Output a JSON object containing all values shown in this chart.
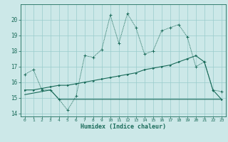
{
  "xlabel": "Humidex (Indice chaleur)",
  "xlim": [
    -0.5,
    23.5
  ],
  "ylim": [
    13.8,
    21.0
  ],
  "yticks": [
    14,
    15,
    16,
    17,
    18,
    19,
    20
  ],
  "xticks": [
    0,
    1,
    2,
    3,
    4,
    5,
    6,
    7,
    8,
    9,
    10,
    11,
    12,
    13,
    14,
    15,
    16,
    17,
    18,
    19,
    20,
    21,
    22,
    23
  ],
  "bg_color": "#cce8e8",
  "grid_color": "#99cccc",
  "line_color": "#1a6b5a",
  "line1_x": [
    0,
    1,
    2,
    3,
    4,
    5,
    6,
    7,
    8,
    9,
    10,
    11,
    12,
    13,
    14,
    15,
    16,
    17,
    18,
    19,
    20,
    21,
    22,
    23
  ],
  "line1_y": [
    16.5,
    16.8,
    15.5,
    15.5,
    14.9,
    14.2,
    15.1,
    17.7,
    17.6,
    18.1,
    20.3,
    18.5,
    20.4,
    19.5,
    17.8,
    18.0,
    19.3,
    19.5,
    19.7,
    18.9,
    17.0,
    17.3,
    15.5,
    15.4
  ],
  "line2_x": [
    0,
    1,
    2,
    3,
    4,
    5,
    6,
    7,
    8,
    9,
    10,
    11,
    12,
    13,
    14,
    15,
    16,
    17,
    18,
    19,
    20,
    21,
    22,
    23
  ],
  "line2_y": [
    15.5,
    15.5,
    15.6,
    15.7,
    15.8,
    15.8,
    15.9,
    16.0,
    16.1,
    16.2,
    16.3,
    16.4,
    16.5,
    16.6,
    16.8,
    16.9,
    17.0,
    17.1,
    17.3,
    17.5,
    17.7,
    17.3,
    15.5,
    14.9
  ],
  "line3_x": [
    0,
    1,
    2,
    3,
    4,
    5,
    6,
    7,
    8,
    9,
    10,
    11,
    12,
    13,
    14,
    15,
    16,
    17,
    18,
    19,
    20,
    21,
    22,
    23
  ],
  "line3_y": [
    15.2,
    15.3,
    15.4,
    15.5,
    14.9,
    14.9,
    14.9,
    14.9,
    14.9,
    14.9,
    14.9,
    14.9,
    14.9,
    14.9,
    14.9,
    14.9,
    14.9,
    14.9,
    14.9,
    14.9,
    14.9,
    14.9,
    14.9,
    14.9
  ]
}
